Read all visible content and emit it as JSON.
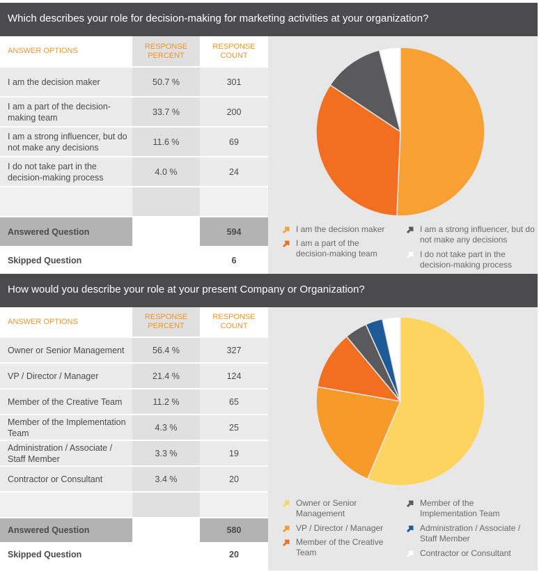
{
  "colors": {
    "header_bg": "#4b4b4d",
    "accent": "#f39324"
  },
  "chart_data": [
    {
      "type": "pie",
      "title": "Which describes your role for decision-making for marketing activities at your organization?",
      "table_headers": [
        "ANSWER OPTIONS",
        "RESPONSE PERCENT",
        "RESPONSE COUNT"
      ],
      "categories": [
        "I am the decision maker",
        "I am a part of the decision-making team",
        "I am a strong influencer, but do not make any decisions",
        "I do not take part in the decision-making process"
      ],
      "percent_labels": [
        "50.7 %",
        "33.7 %",
        "11.6 %",
        "4.0 %"
      ],
      "values": [
        301,
        200,
        69,
        24
      ],
      "colors": [
        "#f7a033",
        "#f26f22",
        "#5a5a5c",
        "#ffffff"
      ],
      "answered_label": "Answered Question",
      "answered": "594",
      "skipped_label": "Skipped Question",
      "skipped": "6",
      "legend_position": "bottom"
    },
    {
      "type": "pie",
      "title": "How would you describe your role at your present Company or Organization?",
      "table_headers": [
        "ANSWER OPTIONS",
        "RESPONSE PERCENT",
        "RESPONSE COUNT"
      ],
      "categories": [
        "Owner or Senior Management",
        "VP / Director / Manager",
        "Member of the Creative Team",
        "Member of the Implementation Team",
        "Administration / Associate / Staff Member",
        "Contractor or Consultant"
      ],
      "percent_labels": [
        "56.4 %",
        "21.4 %",
        "11.2 %",
        "4.3 %",
        "3.3 %",
        "3.4 %"
      ],
      "values": [
        327,
        124,
        65,
        25,
        19,
        20
      ],
      "colors": [
        "#fdd45f",
        "#f79a2a",
        "#f26f22",
        "#5a5a5c",
        "#1e5b96",
        "#ffffff"
      ],
      "answered_label": "Answered Question",
      "answered": "580",
      "skipped_label": "Skipped Question",
      "skipped": "20",
      "legend_position": "bottom"
    }
  ]
}
